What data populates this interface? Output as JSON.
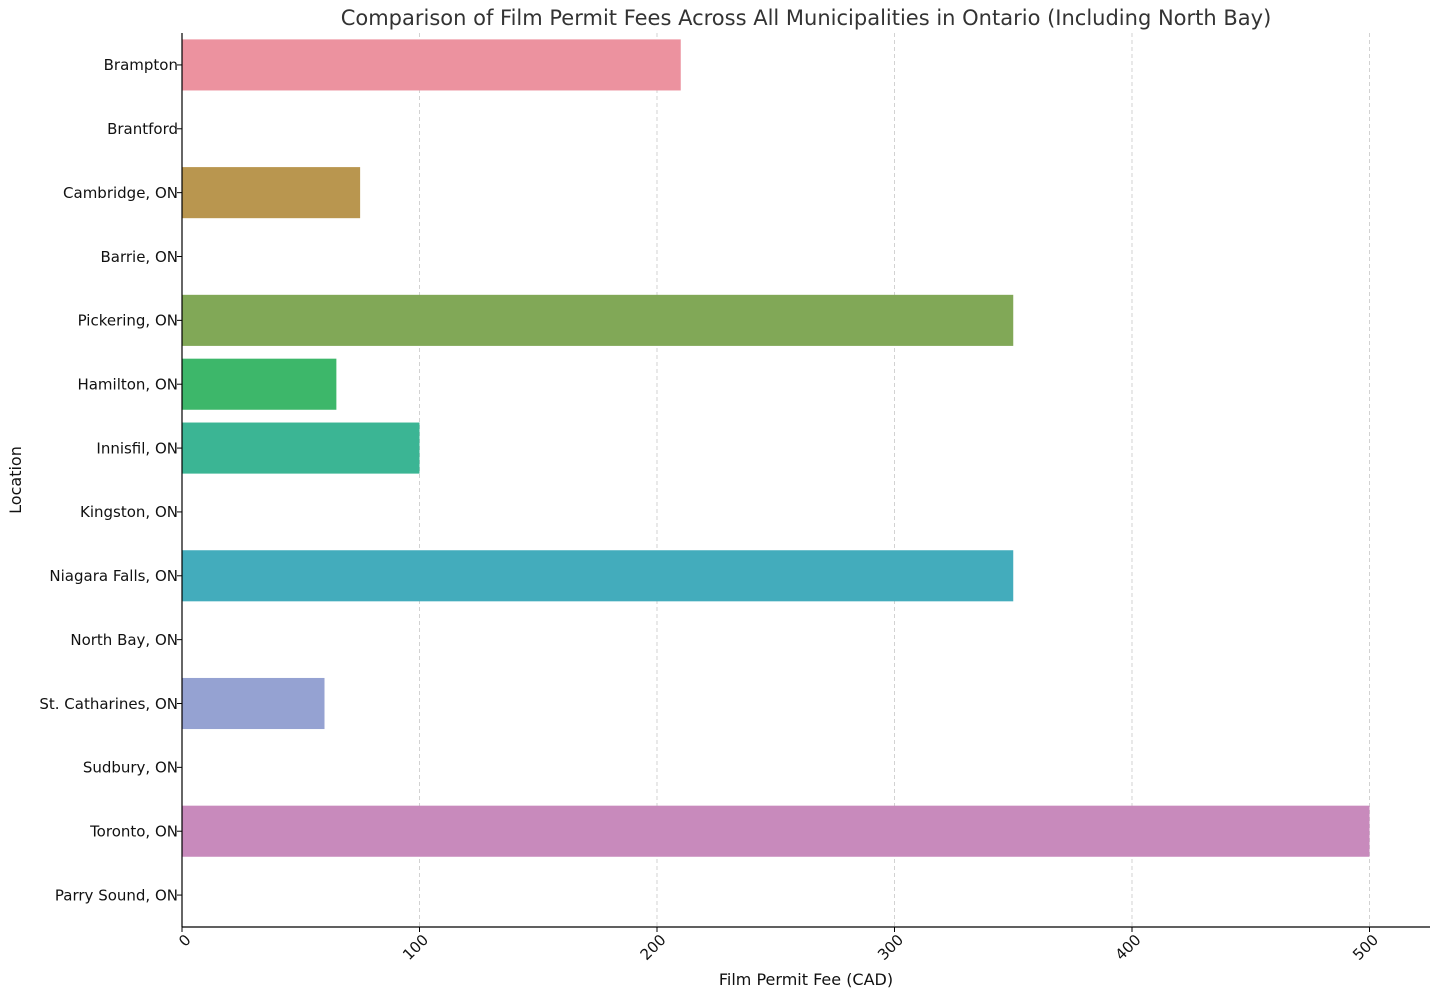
{
  "chart_data": {
    "type": "bar",
    "orientation": "horizontal",
    "title": "Comparison of Film Permit Fees Across All Municipalities in Ontario (Including North Bay)",
    "xlabel": "Film Permit Fee (CAD)",
    "ylabel": "Location",
    "xlim": [
      0,
      525
    ],
    "xticks": [
      0,
      100,
      200,
      300,
      400,
      500
    ],
    "grid": "vertical-dashed",
    "categories": [
      "Brampton",
      "Brantford",
      "Cambridge, ON",
      "Barrie, ON",
      "Pickering, ON",
      "Hamilton, ON",
      "Innisfil, ON",
      "Kingston, ON",
      "Niagara Falls, ON",
      "North Bay, ON",
      "St. Catharines, ON",
      "Sudbury, ON",
      "Toronto, ON",
      "Parry Sound, ON"
    ],
    "values": [
      210,
      0,
      75,
      0,
      350,
      65,
      100,
      0,
      350,
      0,
      60,
      0,
      500,
      0
    ],
    "colors": [
      "#ec929f",
      "#e59a6e",
      "#b9964f",
      "#a7a049",
      "#81a857",
      "#3db76a",
      "#3bb594",
      "#3fb1ae",
      "#43acbc",
      "#6aa6d6",
      "#95a2d2",
      "#c193d0",
      "#c88abc",
      "#e88fb1"
    ]
  }
}
